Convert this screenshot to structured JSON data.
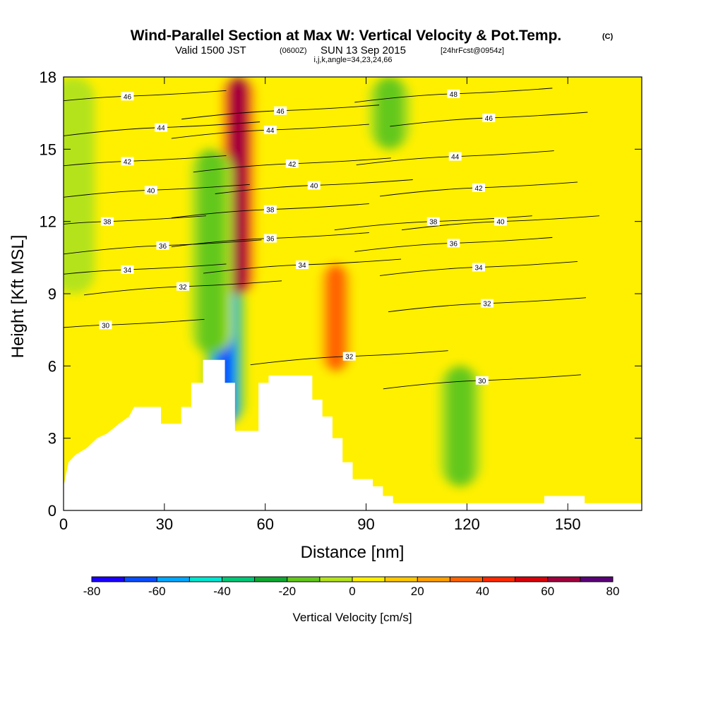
{
  "chart_data": {
    "type": "heatmap",
    "title": "Wind-Parallel Section at Max W: Vertical Velocity & Pot.Temp.",
    "title_mark": "(C)",
    "subtitle_line1_a": "Valid 1500 JST",
    "subtitle_line1_b": "(0600Z)",
    "subtitle_line1_c": "SUN 13 Sep 2015",
    "subtitle_line1_d": "[24hrFcst@0954z]",
    "subtitle_line2": "i,j,k,angle=34,23,24,66",
    "xlabel": "Distance [nm]",
    "ylabel": "Height [Kft MSL]",
    "xlim": [
      0,
      172
    ],
    "ylim": [
      0,
      18
    ],
    "xticks": [
      0,
      30,
      60,
      90,
      120,
      150
    ],
    "yticks": [
      0,
      3,
      6,
      9,
      12,
      15,
      18
    ],
    "xtick_labels": [
      "0",
      "30",
      "60",
      "90",
      "120",
      "150"
    ],
    "ytick_labels": [
      "0",
      "3",
      "6",
      "9",
      "12",
      "15",
      "18"
    ],
    "grid": false,
    "colorbar": {
      "title": "Vertical Velocity [cm/s]",
      "levels": [
        -80,
        -70,
        -60,
        -50,
        -40,
        -30,
        -20,
        -10,
        0,
        10,
        20,
        30,
        40,
        50,
        60,
        70,
        80
      ],
      "tick_labels": [
        "-80",
        "-60",
        "-40",
        "-20",
        "0",
        "20",
        "40",
        "60",
        "80"
      ],
      "tick_values": [
        -80,
        -60,
        -40,
        -20,
        0,
        20,
        40,
        60,
        80
      ],
      "colors": [
        "#1a00ff",
        "#0a4dff",
        "#00a8ff",
        "#00e6d2",
        "#00c878",
        "#10a832",
        "#63c81e",
        "#b4e31e",
        "#fff000",
        "#ffc800",
        "#ffa000",
        "#ff6400",
        "#ff2800",
        "#d8000a",
        "#a0003c",
        "#5a0078"
      ]
    },
    "w_features": [
      {
        "x": 48,
        "y0": 3.6,
        "y1": 9.5,
        "w": -70
      },
      {
        "x": 52,
        "y0": 9,
        "y1": 18,
        "w": 70
      },
      {
        "x": 81,
        "y0": 5.8,
        "y1": 10.2,
        "w": 40
      },
      {
        "x": 44,
        "y0": 6.5,
        "y1": 15,
        "w": -20
      },
      {
        "x": 97,
        "y0": 15,
        "y1": 18,
        "w": -20
      },
      {
        "x": 118,
        "y0": 1,
        "y1": 6,
        "w": -20
      },
      {
        "x": 3,
        "y0": 9,
        "y1": 18,
        "w": -10
      }
    ],
    "theta_contours": [
      {
        "value": 30,
        "label": "30",
        "label_x": 12.5,
        "label_y": 7.7
      },
      {
        "value": 32,
        "label": "32",
        "label_x": 35.5,
        "label_y": 9.3
      },
      {
        "value": 34,
        "label": "34",
        "label_x": 19,
        "label_y": 10.0
      },
      {
        "value": 36,
        "label": "36",
        "label_x": 29.5,
        "label_y": 11.0
      },
      {
        "value": 38,
        "label": "38",
        "label_x": 13,
        "label_y": 12.0
      },
      {
        "value": 40,
        "label": "40",
        "label_x": 26,
        "label_y": 13.3
      },
      {
        "value": 42,
        "label": "42",
        "label_x": 19,
        "label_y": 14.5
      },
      {
        "value": 44,
        "label": "44",
        "label_x": 29,
        "label_y": 15.9
      },
      {
        "value": 46,
        "label": "46",
        "label_x": 19,
        "label_y": 17.2
      },
      {
        "value": 36,
        "label": "36",
        "label_x": 61.5,
        "label_y": 11.3
      },
      {
        "value": 38,
        "label": "38",
        "label_x": 61.5,
        "label_y": 12.5
      },
      {
        "value": 40,
        "label": "40",
        "label_x": 74.5,
        "label_y": 13.5
      },
      {
        "value": 42,
        "label": "42",
        "label_x": 68,
        "label_y": 14.4
      },
      {
        "value": 44,
        "label": "44",
        "label_x": 61.5,
        "label_y": 15.8
      },
      {
        "value": 46,
        "label": "46",
        "label_x": 64.5,
        "label_y": 16.6
      },
      {
        "value": 34,
        "label": "34",
        "label_x": 71,
        "label_y": 10.2
      },
      {
        "value": 32,
        "label": "32",
        "label_x": 85,
        "label_y": 6.4
      },
      {
        "value": 30,
        "label": "30",
        "label_x": 124.5,
        "label_y": 5.4
      },
      {
        "value": 32,
        "label": "32",
        "label_x": 126,
        "label_y": 8.6
      },
      {
        "value": 34,
        "label": "34",
        "label_x": 123.5,
        "label_y": 10.1
      },
      {
        "value": 36,
        "label": "36",
        "label_x": 116,
        "label_y": 11.1
      },
      {
        "value": 38,
        "label": "38",
        "label_x": 110,
        "label_y": 12.0
      },
      {
        "value": 40,
        "label": "40",
        "label_x": 130,
        "label_y": 12.0
      },
      {
        "value": 42,
        "label": "42",
        "label_x": 123.5,
        "label_y": 13.4
      },
      {
        "value": 44,
        "label": "44",
        "label_x": 116.5,
        "label_y": 14.7
      },
      {
        "value": 46,
        "label": "46",
        "label_x": 126.5,
        "label_y": 16.3
      },
      {
        "value": 48,
        "label": "48",
        "label_x": 116,
        "label_y": 17.3
      }
    ],
    "terrain": [
      [
        0,
        1.0
      ],
      [
        1.5,
        2.0
      ],
      [
        3.5,
        2.3
      ],
      [
        7,
        2.6
      ],
      [
        10,
        3.0
      ],
      [
        13,
        3.2
      ],
      [
        16.5,
        3.6
      ],
      [
        19.5,
        3.9
      ],
      [
        21,
        4.3
      ],
      [
        29,
        4.3
      ],
      [
        29,
        3.6
      ],
      [
        35,
        3.6
      ],
      [
        35,
        4.3
      ],
      [
        38,
        4.3
      ],
      [
        38,
        5.3
      ],
      [
        41.5,
        5.3
      ],
      [
        41.5,
        6.25
      ],
      [
        48,
        6.25
      ],
      [
        48,
        5.3
      ],
      [
        51,
        5.3
      ],
      [
        51,
        3.3
      ],
      [
        58,
        3.3
      ],
      [
        58,
        5.3
      ],
      [
        61,
        5.3
      ],
      [
        61,
        5.6
      ],
      [
        74,
        5.6
      ],
      [
        74,
        4.6
      ],
      [
        77,
        4.6
      ],
      [
        77,
        3.9
      ],
      [
        80,
        3.9
      ],
      [
        80,
        3.0
      ],
      [
        83,
        3.0
      ],
      [
        83,
        2.0
      ],
      [
        86,
        2.0
      ],
      [
        86,
        1.3
      ],
      [
        92,
        1.3
      ],
      [
        92,
        1.0
      ],
      [
        95,
        1.0
      ],
      [
        95,
        0.6
      ],
      [
        98,
        0.6
      ],
      [
        98,
        0.3
      ],
      [
        143,
        0.3
      ],
      [
        143,
        0.6
      ],
      [
        155,
        0.6
      ],
      [
        155,
        0.3
      ],
      [
        172,
        0.3
      ]
    ]
  }
}
